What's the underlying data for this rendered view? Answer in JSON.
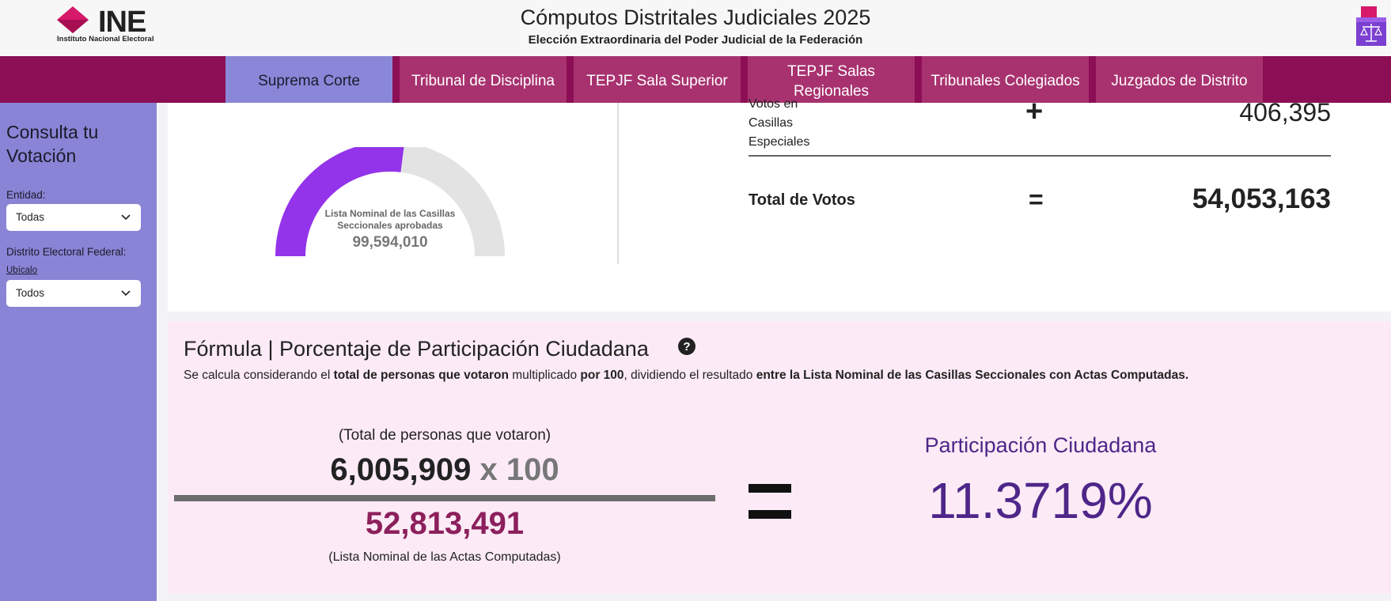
{
  "header": {
    "logo_text": "INE",
    "logo_subtitle": "Instituto Nacional Electoral",
    "title": "Cómputos Distritales Judiciales 2025",
    "subtitle": "Elección Extraordinaria del Poder Judicial de la Federación",
    "brand_color": "#8c0e55",
    "logo_color": "#d6196b"
  },
  "tabs": [
    {
      "label": "Suprema Corte",
      "active": true
    },
    {
      "label": "Tribunal de Disciplina",
      "active": false
    },
    {
      "label": "TEPJF Sala Superior",
      "active": false
    },
    {
      "label": "TEPJF Salas Regionales",
      "active": false
    },
    {
      "label": "Tribunales Colegiados",
      "active": false
    },
    {
      "label": "Juzgados de Distrito",
      "active": false
    }
  ],
  "sidebar": {
    "title": "Consulta tu Votación",
    "entidad_label": "Entidad:",
    "entidad_value": "Todas",
    "distrito_label": "Distrito Electoral Federal:",
    "ubicalo_link": "Ubícalo",
    "distrito_value": "Todos",
    "bg_color": "#8a84d6"
  },
  "gauge": {
    "label": "Lista Nominal de las Casillas Seccionales aprobadas",
    "value": "99,594,010",
    "fill_fraction": 0.54,
    "fill_color": "#9333ea"
  },
  "votes": {
    "especiales_label": "Votos en Casillas Especiales",
    "especiales_op": "+",
    "especiales_value": "406,395",
    "total_label": "Total de Votos",
    "total_op": "=",
    "total_value": "54,053,163"
  },
  "formula": {
    "title": "Fórmula | Porcentaje de Participación Ciudadana",
    "help_icon": "?",
    "desc_1": "Se calcula considerando el ",
    "desc_2": "total de personas que votaron",
    "desc_3": " multiplicado ",
    "desc_4": "por 100",
    "desc_5": ", dividiendo el resultado ",
    "desc_6": "entre la Lista Nominal de las Casillas Seccionales con Actas Computadas.",
    "numerator_label": "(Total de personas que votaron)",
    "numerator_value": "6,005,909",
    "multiplier": "x 100",
    "denominator_value": "52,813,491",
    "denominator_label": "(Lista Nominal de las Actas Computadas)",
    "result_title": "Participación Ciudadana",
    "result_value": "11.3719%"
  }
}
